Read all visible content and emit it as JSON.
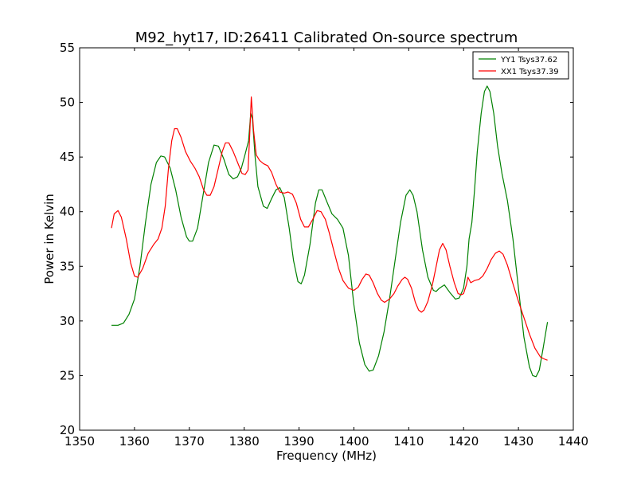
{
  "chart_data": {
    "type": "line",
    "title": "M92_hyt17, ID:26411 Calibrated On-source spectrum",
    "xlabel": "Frequency (MHz)",
    "ylabel": "Power in Kelvin",
    "xlim": [
      1350,
      1440
    ],
    "ylim": [
      20,
      55
    ],
    "xticks": [
      "1350",
      "1360",
      "1370",
      "1380",
      "1390",
      "1400",
      "1410",
      "1420",
      "1430",
      "1440"
    ],
    "yticks": [
      "20",
      "25",
      "30",
      "35",
      "40",
      "45",
      "50",
      "55"
    ],
    "grid": false,
    "legend_position": "top-right",
    "series": [
      {
        "name": "YY1 Tsys37.62",
        "color": "#008000",
        "points": [
          [
            1355.8,
            29.6
          ],
          [
            1357.0,
            29.6
          ],
          [
            1358.0,
            29.8
          ],
          [
            1359.0,
            30.6
          ],
          [
            1360.0,
            32.0
          ],
          [
            1361.0,
            35.0
          ],
          [
            1362.0,
            39.0
          ],
          [
            1363.0,
            42.5
          ],
          [
            1364.0,
            44.5
          ],
          [
            1364.8,
            45.1
          ],
          [
            1365.5,
            45.0
          ],
          [
            1366.5,
            44.0
          ],
          [
            1367.5,
            42.0
          ],
          [
            1368.5,
            39.5
          ],
          [
            1369.5,
            37.7
          ],
          [
            1370.0,
            37.3
          ],
          [
            1370.6,
            37.3
          ],
          [
            1371.5,
            38.5
          ],
          [
            1372.5,
            41.5
          ],
          [
            1373.5,
            44.5
          ],
          [
            1374.5,
            46.1
          ],
          [
            1375.3,
            46.0
          ],
          [
            1376.3,
            44.8
          ],
          [
            1377.2,
            43.4
          ],
          [
            1378.0,
            43.0
          ],
          [
            1378.8,
            43.2
          ],
          [
            1379.5,
            44.0
          ],
          [
            1380.2,
            45.3
          ],
          [
            1380.8,
            46.5
          ],
          [
            1381.2,
            49.0
          ],
          [
            1381.5,
            48.5
          ],
          [
            1382.0,
            45.0
          ],
          [
            1382.5,
            42.3
          ],
          [
            1383.5,
            40.5
          ],
          [
            1384.2,
            40.3
          ],
          [
            1385.0,
            41.2
          ],
          [
            1385.8,
            42.0
          ],
          [
            1386.5,
            42.2
          ],
          [
            1387.3,
            41.3
          ],
          [
            1388.2,
            38.5
          ],
          [
            1389.0,
            35.5
          ],
          [
            1389.8,
            33.6
          ],
          [
            1390.4,
            33.4
          ],
          [
            1391.0,
            34.2
          ],
          [
            1392.0,
            37.0
          ],
          [
            1393.0,
            40.8
          ],
          [
            1393.6,
            42.0
          ],
          [
            1394.2,
            42.0
          ],
          [
            1395.0,
            41.0
          ],
          [
            1396.0,
            39.8
          ],
          [
            1397.0,
            39.3
          ],
          [
            1398.0,
            38.5
          ],
          [
            1399.0,
            36.0
          ],
          [
            1400.0,
            31.5
          ],
          [
            1401.0,
            28.0
          ],
          [
            1402.0,
            26.0
          ],
          [
            1402.8,
            25.4
          ],
          [
            1403.5,
            25.5
          ],
          [
            1404.5,
            26.8
          ],
          [
            1405.5,
            29.0
          ],
          [
            1406.5,
            32.0
          ],
          [
            1407.5,
            35.5
          ],
          [
            1408.5,
            39.0
          ],
          [
            1409.5,
            41.5
          ],
          [
            1410.2,
            42.0
          ],
          [
            1410.8,
            41.5
          ],
          [
            1411.5,
            40.0
          ],
          [
            1412.5,
            36.5
          ],
          [
            1413.5,
            34.0
          ],
          [
            1414.5,
            32.8
          ],
          [
            1415.0,
            32.7
          ],
          [
            1415.6,
            33.0
          ],
          [
            1416.5,
            33.3
          ],
          [
            1417.5,
            32.6
          ],
          [
            1418.5,
            32.0
          ],
          [
            1419.2,
            32.1
          ],
          [
            1420.0,
            33.0
          ],
          [
            1420.6,
            35.0
          ],
          [
            1421.0,
            37.5
          ],
          [
            1421.5,
            39.0
          ],
          [
            1422.0,
            42.0
          ],
          [
            1422.5,
            45.5
          ],
          [
            1423.2,
            49.0
          ],
          [
            1423.8,
            51.0
          ],
          [
            1424.3,
            51.5
          ],
          [
            1424.8,
            51.0
          ],
          [
            1425.5,
            49.0
          ],
          [
            1426.2,
            46.0
          ],
          [
            1427.0,
            43.5
          ],
          [
            1428.0,
            41.0
          ],
          [
            1429.0,
            37.5
          ],
          [
            1430.0,
            33.0
          ],
          [
            1431.0,
            28.5
          ],
          [
            1432.0,
            25.8
          ],
          [
            1432.6,
            25.0
          ],
          [
            1433.2,
            24.9
          ],
          [
            1433.8,
            25.5
          ],
          [
            1434.5,
            27.5
          ],
          [
            1435.3,
            29.9
          ]
        ]
      },
      {
        "name": "XX1 Tsys37.39",
        "color": "#ff0000",
        "points": [
          [
            1355.8,
            38.5
          ],
          [
            1356.3,
            39.8
          ],
          [
            1357.0,
            40.1
          ],
          [
            1357.6,
            39.5
          ],
          [
            1358.5,
            37.5
          ],
          [
            1359.3,
            35.3
          ],
          [
            1360.0,
            34.1
          ],
          [
            1360.6,
            34.0
          ],
          [
            1361.5,
            34.8
          ],
          [
            1362.5,
            36.2
          ],
          [
            1363.5,
            37.0
          ],
          [
            1364.3,
            37.5
          ],
          [
            1365.0,
            38.5
          ],
          [
            1365.6,
            40.5
          ],
          [
            1366.2,
            44.0
          ],
          [
            1366.8,
            46.5
          ],
          [
            1367.3,
            47.6
          ],
          [
            1367.8,
            47.6
          ],
          [
            1368.5,
            46.8
          ],
          [
            1369.3,
            45.5
          ],
          [
            1370.2,
            44.6
          ],
          [
            1371.0,
            44.0
          ],
          [
            1371.8,
            43.2
          ],
          [
            1372.6,
            42.0
          ],
          [
            1373.2,
            41.5
          ],
          [
            1373.8,
            41.5
          ],
          [
            1374.5,
            42.3
          ],
          [
            1375.3,
            44.0
          ],
          [
            1376.0,
            45.5
          ],
          [
            1376.6,
            46.3
          ],
          [
            1377.2,
            46.3
          ],
          [
            1378.0,
            45.5
          ],
          [
            1378.8,
            44.5
          ],
          [
            1379.6,
            43.5
          ],
          [
            1380.2,
            43.4
          ],
          [
            1380.7,
            43.8
          ],
          [
            1381.0,
            47.0
          ],
          [
            1381.3,
            50.5
          ],
          [
            1381.7,
            47.5
          ],
          [
            1382.2,
            45.2
          ],
          [
            1382.8,
            44.7
          ],
          [
            1383.5,
            44.4
          ],
          [
            1384.3,
            44.2
          ],
          [
            1385.0,
            43.6
          ],
          [
            1385.8,
            42.5
          ],
          [
            1386.5,
            41.8
          ],
          [
            1387.3,
            41.7
          ],
          [
            1388.0,
            41.8
          ],
          [
            1388.8,
            41.6
          ],
          [
            1389.5,
            40.8
          ],
          [
            1390.3,
            39.3
          ],
          [
            1391.0,
            38.6
          ],
          [
            1391.7,
            38.6
          ],
          [
            1392.5,
            39.3
          ],
          [
            1393.3,
            40.1
          ],
          [
            1394.0,
            40.0
          ],
          [
            1394.8,
            39.3
          ],
          [
            1395.5,
            38.1
          ],
          [
            1396.3,
            36.5
          ],
          [
            1397.2,
            34.8
          ],
          [
            1398.0,
            33.7
          ],
          [
            1399.0,
            33.0
          ],
          [
            1400.0,
            32.8
          ],
          [
            1400.8,
            33.1
          ],
          [
            1401.5,
            33.8
          ],
          [
            1402.2,
            34.3
          ],
          [
            1402.8,
            34.2
          ],
          [
            1403.5,
            33.5
          ],
          [
            1404.3,
            32.5
          ],
          [
            1405.0,
            31.9
          ],
          [
            1405.6,
            31.7
          ],
          [
            1406.5,
            32.0
          ],
          [
            1407.3,
            32.5
          ],
          [
            1408.0,
            33.2
          ],
          [
            1408.8,
            33.8
          ],
          [
            1409.3,
            34.0
          ],
          [
            1409.8,
            33.8
          ],
          [
            1410.5,
            33.0
          ],
          [
            1411.2,
            31.7
          ],
          [
            1411.8,
            31.0
          ],
          [
            1412.3,
            30.8
          ],
          [
            1412.8,
            31.0
          ],
          [
            1413.5,
            31.8
          ],
          [
            1414.3,
            33.3
          ],
          [
            1415.0,
            35.0
          ],
          [
            1415.6,
            36.5
          ],
          [
            1416.2,
            37.1
          ],
          [
            1416.8,
            36.5
          ],
          [
            1417.5,
            35.0
          ],
          [
            1418.3,
            33.5
          ],
          [
            1419.0,
            32.5
          ],
          [
            1419.6,
            32.4
          ],
          [
            1420.0,
            32.5
          ],
          [
            1420.5,
            33.3
          ],
          [
            1420.8,
            34.0
          ],
          [
            1421.3,
            33.5
          ],
          [
            1422.0,
            33.7
          ],
          [
            1422.8,
            33.8
          ],
          [
            1423.5,
            34.1
          ],
          [
            1424.3,
            34.8
          ],
          [
            1425.0,
            35.6
          ],
          [
            1425.8,
            36.2
          ],
          [
            1426.5,
            36.4
          ],
          [
            1427.2,
            36.1
          ],
          [
            1428.0,
            35.1
          ],
          [
            1429.0,
            33.4
          ],
          [
            1430.0,
            31.8
          ],
          [
            1431.0,
            30.3
          ],
          [
            1432.0,
            28.8
          ],
          [
            1433.0,
            27.5
          ],
          [
            1434.0,
            26.7
          ],
          [
            1434.8,
            26.5
          ],
          [
            1435.3,
            26.4
          ]
        ]
      }
    ]
  }
}
